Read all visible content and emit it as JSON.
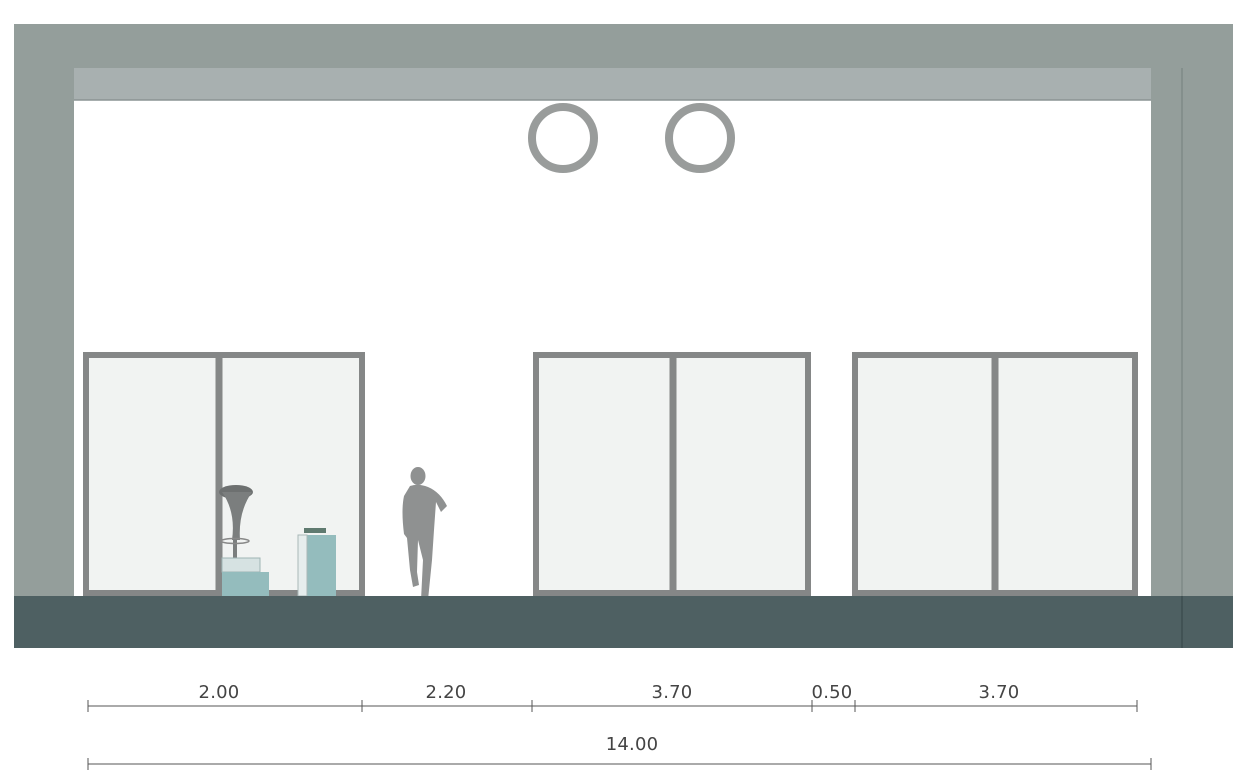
{
  "colors": {
    "structure": "#949e9b",
    "beam": "#a8b0b0",
    "frame": "#858787",
    "glass": "#f1f3f2",
    "floor": "#4e6062",
    "accent": "#94bcbd",
    "figure": "#8f9191",
    "dimension_line": "#555555"
  },
  "dimensions": {
    "segments": [
      "2.00",
      "2.20",
      "3.70",
      "0.50",
      "3.70"
    ],
    "total": "14.00"
  }
}
